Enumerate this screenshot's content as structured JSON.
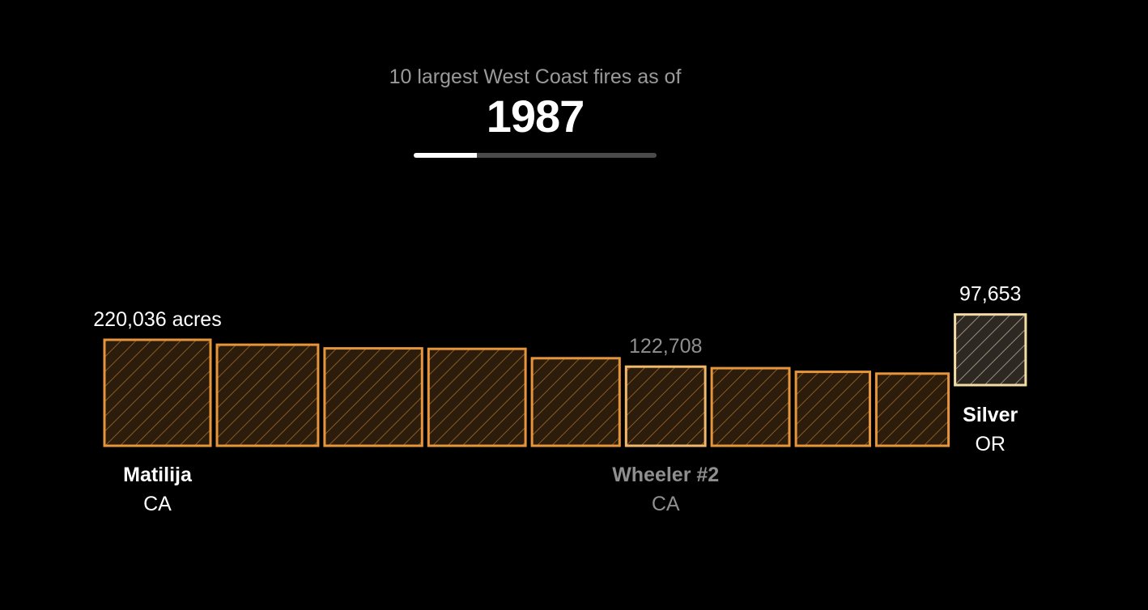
{
  "header": {
    "subtitle": "10 largest West Coast fires as of",
    "year": "1987",
    "progress": 0.26
  },
  "colors": {
    "bar_stroke": "#e6953a",
    "bar_fill": "#2b1c0c",
    "hatch": "#8a5a22",
    "highlight_stroke": "#f3dca6",
    "highlight_fill": "#2e2822",
    "highlight_hatch": "#9a8e7e",
    "text_primary": "#ffffff",
    "text_muted": "#8f8f8f"
  },
  "chart_data": {
    "type": "bar",
    "unit": "acres",
    "bars": [
      {
        "acres": 220036,
        "value_label": "220,036 acres",
        "name": "Matilija",
        "state": "CA",
        "label_style": "primary"
      },
      {
        "acres": 200000
      },
      {
        "acres": 186000
      },
      {
        "acres": 184000
      },
      {
        "acres": 150000
      },
      {
        "acres": 122708,
        "value_label": "122,708",
        "name": "Wheeler #2",
        "state": "CA",
        "label_style": "muted",
        "stroke": "light"
      },
      {
        "acres": 118000
      },
      {
        "acres": 107000
      },
      {
        "acres": 102000
      },
      {
        "acres": 97653,
        "value_label": "97,653",
        "name": "Silver",
        "state": "OR",
        "label_style": "primary",
        "highlight": true
      }
    ]
  }
}
